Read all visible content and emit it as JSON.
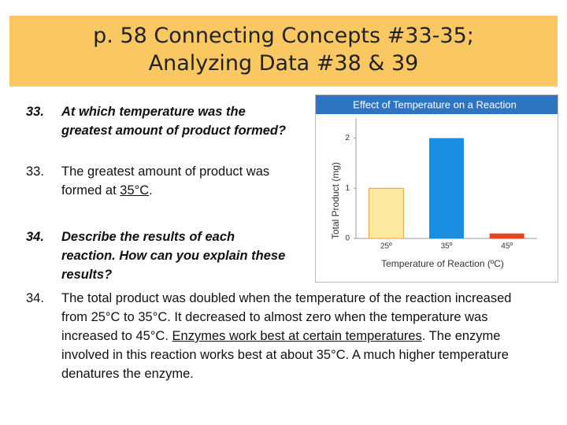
{
  "header": {
    "title_line1": "p. 58 Connecting Concepts #33-35;",
    "title_line2": "Analyzing Data #38 & 39"
  },
  "items": [
    {
      "question_number": "33.",
      "question": "At which temperature was the greatest amount of product formed?",
      "answer_number": "33.",
      "answer": [
        "The greatest amount of product was formed at ",
        "35°C",
        "."
      ]
    },
    {
      "question_number": "34.",
      "question": "Describe the results of each reaction.  How can you explain these results?",
      "answer_number": "34.",
      "answer": [
        "The total product was doubled when the temperature of the reaction increased from 25°C to 35°C.  It decreased to almost zero when the temperature was increased to 45°C.  ",
        "Enzymes work best at certain temperatures",
        ".  The enzyme involved in this reaction works best at about 35°C.  A much higher temperature denatures the enzyme."
      ]
    }
  ],
  "chart_data": {
    "type": "bar",
    "title": "Effect of Temperature on a Reaction",
    "x_label": "Temperature of Reaction (ºC)",
    "y_label": "Total Product (mg)",
    "categories": [
      "25º",
      "35º",
      "45º"
    ],
    "values": [
      1,
      2,
      0.1
    ],
    "colors": [
      "#fde9a0",
      "#1a8ee0",
      "#e8461e"
    ],
    "ylim": [
      0,
      2.4
    ],
    "yticks": [
      0,
      1,
      2
    ]
  }
}
